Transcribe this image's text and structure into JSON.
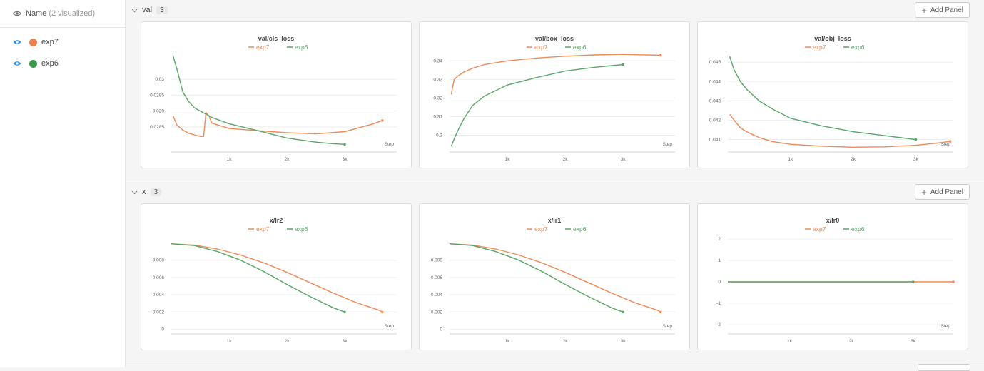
{
  "sidebar": {
    "header_label": "Name",
    "header_count": "(2 visualized)",
    "runs": [
      {
        "name": "exp7",
        "color": "#e8834f"
      },
      {
        "name": "exp6",
        "color": "#3a9a4e"
      }
    ]
  },
  "sections": [
    {
      "title": "val",
      "count": "3",
      "add_panel": "Add Panel"
    },
    {
      "title": "x",
      "count": "3",
      "add_panel": "Add Panel"
    }
  ],
  "colors": {
    "exp7": "#ee8b58",
    "exp6": "#5aa66a"
  },
  "chart_data": [
    {
      "type": "line",
      "title": "val/cls_loss",
      "xlabel": "Step",
      "xlim": [
        0,
        3900
      ],
      "ylim": [
        0.0278,
        0.0309
      ],
      "xticks": [
        1000,
        2000,
        3000
      ],
      "xtick_labels": [
        "1k",
        "2k",
        "3k"
      ],
      "yticks": [
        0.0285,
        0.029,
        0.0295,
        0.03
      ],
      "ytick_labels": [
        "0.0285",
        "0.029",
        "0.0295",
        "0.03"
      ],
      "legend": "top-center",
      "series": [
        {
          "name": "exp7",
          "points": [
            [
              30,
              0.02885
            ],
            [
              100,
              0.02855
            ],
            [
              200,
              0.0284
            ],
            [
              300,
              0.0283
            ],
            [
              400,
              0.02825
            ],
            [
              500,
              0.0282
            ],
            [
              560,
              0.0282
            ],
            [
              600,
              0.02895
            ],
            [
              650,
              0.02885
            ],
            [
              700,
              0.02862
            ],
            [
              1000,
              0.02845
            ],
            [
              1500,
              0.02838
            ],
            [
              2000,
              0.02832
            ],
            [
              2500,
              0.02828
            ],
            [
              3000,
              0.02835
            ],
            [
              3300,
              0.0285
            ],
            [
              3500,
              0.0286
            ],
            [
              3650,
              0.0287
            ]
          ]
        },
        {
          "name": "exp6",
          "points": [
            [
              30,
              0.03075
            ],
            [
              100,
              0.0303
            ],
            [
              200,
              0.0296
            ],
            [
              300,
              0.0293
            ],
            [
              400,
              0.0291
            ],
            [
              500,
              0.029
            ],
            [
              600,
              0.0289
            ],
            [
              700,
              0.0288
            ],
            [
              1000,
              0.0286
            ],
            [
              1500,
              0.02838
            ],
            [
              2000,
              0.02815
            ],
            [
              2500,
              0.02802
            ],
            [
              2800,
              0.02797
            ],
            [
              3000,
              0.02795
            ]
          ]
        }
      ]
    },
    {
      "type": "line",
      "title": "val/box_loss",
      "xlabel": "Step",
      "xlim": [
        0,
        3900
      ],
      "ylim": [
        0.2925,
        0.3455
      ],
      "xticks": [
        1000,
        2000,
        3000
      ],
      "xtick_labels": [
        "1k",
        "2k",
        "3k"
      ],
      "yticks": [
        0.3,
        0.31,
        0.32,
        0.33,
        0.34
      ],
      "ytick_labels": [
        "0.3",
        "0.31",
        "0.32",
        "0.33",
        "0.34"
      ],
      "legend": "top-center",
      "series": [
        {
          "name": "exp7",
          "points": [
            [
              30,
              0.322
            ],
            [
              80,
              0.33
            ],
            [
              150,
              0.332
            ],
            [
              250,
              0.334
            ],
            [
              400,
              0.336
            ],
            [
              600,
              0.338
            ],
            [
              800,
              0.339
            ],
            [
              1000,
              0.34
            ],
            [
              1500,
              0.3415
            ],
            [
              2000,
              0.3425
            ],
            [
              2500,
              0.3432
            ],
            [
              3000,
              0.3435
            ],
            [
              3650,
              0.343
            ]
          ]
        },
        {
          "name": "exp6",
          "points": [
            [
              30,
              0.294
            ],
            [
              80,
              0.298
            ],
            [
              150,
              0.303
            ],
            [
              250,
              0.309
            ],
            [
              400,
              0.316
            ],
            [
              600,
              0.321
            ],
            [
              800,
              0.324
            ],
            [
              1000,
              0.327
            ],
            [
              1500,
              0.331
            ],
            [
              2000,
              0.3345
            ],
            [
              2500,
              0.3365
            ],
            [
              3000,
              0.338
            ]
          ]
        }
      ]
    },
    {
      "type": "line",
      "title": "val/obj_loss",
      "xlabel": "Step",
      "xlim": [
        0,
        3600
      ],
      "ylim": [
        0.0405,
        0.0456
      ],
      "xticks": [
        1000,
        2000,
        3000
      ],
      "xtick_labels": [
        "1k",
        "2k",
        "3k"
      ],
      "yticks": [
        0.041,
        0.042,
        0.043,
        0.044,
        0.045
      ],
      "ytick_labels": [
        "0.041",
        "0.042",
        "0.043",
        "0.044",
        "0.045"
      ],
      "legend": "top-center",
      "series": [
        {
          "name": "exp7",
          "points": [
            [
              30,
              0.0423
            ],
            [
              100,
              0.042
            ],
            [
              200,
              0.0416
            ],
            [
              300,
              0.0414
            ],
            [
              500,
              0.0411
            ],
            [
              700,
              0.0409
            ],
            [
              1000,
              0.04075
            ],
            [
              1500,
              0.04065
            ],
            [
              2000,
              0.0406
            ],
            [
              2500,
              0.04062
            ],
            [
              3000,
              0.0407
            ],
            [
              3300,
              0.0408
            ],
            [
              3550,
              0.0409
            ]
          ]
        },
        {
          "name": "exp6",
          "points": [
            [
              30,
              0.0453
            ],
            [
              100,
              0.0446
            ],
            [
              200,
              0.044
            ],
            [
              300,
              0.0436
            ],
            [
              500,
              0.043
            ],
            [
              700,
              0.0426
            ],
            [
              1000,
              0.0421
            ],
            [
              1500,
              0.0417
            ],
            [
              2000,
              0.0414
            ],
            [
              2500,
              0.0412
            ],
            [
              3000,
              0.041
            ]
          ]
        }
      ]
    },
    {
      "type": "line",
      "title": "x/lr2",
      "xlabel": "Step",
      "xlim": [
        0,
        3900
      ],
      "ylim": [
        -0.0002,
        0.0112
      ],
      "xticks": [
        1000,
        2000,
        3000
      ],
      "xtick_labels": [
        "1k",
        "2k",
        "3k"
      ],
      "yticks": [
        0,
        0.002,
        0.004,
        0.006,
        0.008
      ],
      "ytick_labels": [
        "0",
        "0.002",
        "0.004",
        "0.006",
        "0.008"
      ],
      "legend": "top-center",
      "series": [
        {
          "name": "exp7",
          "points": [
            [
              0,
              0.0099
            ],
            [
              400,
              0.00975
            ],
            [
              800,
              0.0093
            ],
            [
              1200,
              0.0086
            ],
            [
              1600,
              0.0077
            ],
            [
              2000,
              0.0066
            ],
            [
              2400,
              0.0054
            ],
            [
              2800,
              0.0042
            ],
            [
              3200,
              0.0031
            ],
            [
              3600,
              0.0022
            ],
            [
              3650,
              0.002
            ]
          ]
        },
        {
          "name": "exp6",
          "points": [
            [
              0,
              0.0099
            ],
            [
              400,
              0.0097
            ],
            [
              800,
              0.009
            ],
            [
              1200,
              0.008
            ],
            [
              1600,
              0.0067
            ],
            [
              2000,
              0.0052
            ],
            [
              2400,
              0.0038
            ],
            [
              2800,
              0.0025
            ],
            [
              3000,
              0.002
            ]
          ]
        }
      ]
    },
    {
      "type": "line",
      "title": "x/lr1",
      "xlabel": "Step",
      "xlim": [
        0,
        3900
      ],
      "ylim": [
        -0.0002,
        0.0112
      ],
      "xticks": [
        1000,
        2000,
        3000
      ],
      "xtick_labels": [
        "1k",
        "2k",
        "3k"
      ],
      "yticks": [
        0,
        0.002,
        0.004,
        0.006,
        0.008
      ],
      "ytick_labels": [
        "0",
        "0.002",
        "0.004",
        "0.006",
        "0.008"
      ],
      "legend": "top-center",
      "series": [
        {
          "name": "exp7",
          "points": [
            [
              0,
              0.0099
            ],
            [
              400,
              0.00975
            ],
            [
              800,
              0.0093
            ],
            [
              1200,
              0.0086
            ],
            [
              1600,
              0.0077
            ],
            [
              2000,
              0.0066
            ],
            [
              2400,
              0.0054
            ],
            [
              2800,
              0.0042
            ],
            [
              3200,
              0.0031
            ],
            [
              3600,
              0.0022
            ],
            [
              3650,
              0.002
            ]
          ]
        },
        {
          "name": "exp6",
          "points": [
            [
              0,
              0.0099
            ],
            [
              400,
              0.0097
            ],
            [
              800,
              0.009
            ],
            [
              1200,
              0.008
            ],
            [
              1600,
              0.0067
            ],
            [
              2000,
              0.0052
            ],
            [
              2400,
              0.0038
            ],
            [
              2800,
              0.0025
            ],
            [
              3000,
              0.002
            ]
          ]
        }
      ]
    },
    {
      "type": "line",
      "title": "x/lr0",
      "xlabel": "Step",
      "xlim": [
        0,
        3650
      ],
      "ylim": [
        -2.3,
        2.3
      ],
      "xticks": [
        1000,
        2000,
        3000
      ],
      "xtick_labels": [
        "1k",
        "2k",
        "3k"
      ],
      "yticks": [
        -2,
        -1,
        0,
        1,
        2
      ],
      "ytick_labels": [
        "-2",
        "-1",
        "0",
        "1",
        "2"
      ],
      "legend": "top-center",
      "series": [
        {
          "name": "exp7",
          "points": [
            [
              0,
              0
            ],
            [
              3650,
              0
            ]
          ]
        },
        {
          "name": "exp6",
          "points": [
            [
              0,
              0
            ],
            [
              3000,
              0
            ]
          ]
        }
      ]
    }
  ]
}
